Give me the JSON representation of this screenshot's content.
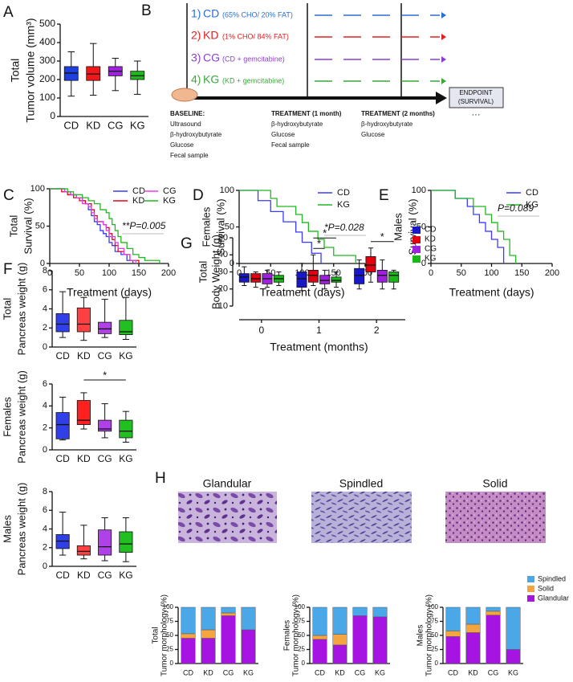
{
  "panels": [
    "A",
    "B",
    "C",
    "D",
    "E",
    "F",
    "G",
    "H"
  ],
  "schematic": {
    "rows": [
      {
        "number": "1)",
        "name": "CD",
        "desc": "(65% CHO/ 20% FAT)",
        "color": "#2a6fd6"
      },
      {
        "number": "2)",
        "name": "KD",
        "desc": "(1% CHO/ 84% FAT)",
        "color": "#e02020"
      },
      {
        "number": "3)",
        "name": "CG",
        "desc": "(CD + gemcitabine)",
        "color": "#8b3fd0"
      },
      {
        "number": "4)",
        "name": "KG",
        "desc": "(KD + gemcitabine)",
        "color": "#3aa83a"
      }
    ],
    "timepoints": [
      {
        "title": "BASELINE:",
        "items": [
          "Ultrasound",
          "β-hydroxybutyrate",
          "Glucose",
          "Fecal sample"
        ]
      },
      {
        "title": "TREATMENT (1 month)",
        "items": [
          "β-hydroxybutyrate",
          "Glucose",
          "Fecal sample"
        ]
      },
      {
        "title": "TREATMENT (2 months)",
        "items": [
          "β-hydroxybutyrate",
          "Glucose"
        ]
      }
    ],
    "endpoint": [
      "ENDPOINT",
      "(SURVIVAL)"
    ],
    "ellipsis": "···"
  },
  "histology": [
    "Glandular",
    "Spindled",
    "Solid"
  ],
  "chart_data": [
    {
      "type": "box",
      "ylabel": [
        "Total",
        "Tumor volume (mm³)"
      ],
      "categories": [
        "CD",
        "KD",
        "CG",
        "KG"
      ],
      "colors": [
        "#1f3fe0",
        "#f01818",
        "#a020e0",
        "#1cb81c"
      ],
      "boxes": [
        {
          "min": 110,
          "q1": 195,
          "median": 235,
          "q3": 270,
          "max": 350
        },
        {
          "min": 115,
          "q1": 195,
          "median": 230,
          "q3": 270,
          "max": 395
        },
        {
          "min": 140,
          "q1": 220,
          "median": 245,
          "q3": 270,
          "max": 315
        },
        {
          "min": 120,
          "q1": 200,
          "median": 220,
          "q3": 245,
          "max": 300
        }
      ],
      "ylim": [
        0,
        500
      ],
      "yticks": [
        0,
        100,
        200,
        300,
        400,
        500
      ]
    },
    {
      "type": "survival",
      "ylabel": [
        "Total",
        "Survival (%)"
      ],
      "xlabel": "Treatment (days)",
      "xlim": [
        0,
        200
      ],
      "xticks": [
        0,
        50,
        100,
        150,
        200
      ],
      "ylim": [
        0,
        100
      ],
      "yticks": [
        0,
        50,
        100
      ],
      "annotation": "**P=0.005",
      "legend": "upper right",
      "series": [
        {
          "name": "CD",
          "color": "#3a3aff",
          "x": [
            0,
            25,
            35,
            45,
            55,
            60,
            65,
            70,
            75,
            80,
            85,
            90,
            95,
            100,
            105,
            110,
            120,
            130,
            140
          ],
          "values": [
            100,
            96,
            92,
            88,
            84,
            80,
            72,
            64,
            56,
            52,
            44,
            40,
            36,
            28,
            24,
            16,
            12,
            4,
            0
          ]
        },
        {
          "name": "KD",
          "color": "#e8001c",
          "x": [
            0,
            20,
            30,
            40,
            50,
            60,
            70,
            75,
            80,
            90,
            95,
            100,
            105,
            110,
            115,
            125,
            135,
            150
          ],
          "values": [
            100,
            96,
            92,
            88,
            84,
            80,
            72,
            64,
            56,
            52,
            48,
            40,
            32,
            24,
            16,
            12,
            4,
            0
          ]
        },
        {
          "name": "CG",
          "color": "#e040e0",
          "x": [
            0,
            25,
            35,
            45,
            55,
            65,
            70,
            75,
            80,
            90,
            95,
            100,
            110,
            115,
            125,
            135,
            145
          ],
          "values": [
            100,
            96,
            92,
            88,
            80,
            76,
            68,
            60,
            56,
            52,
            44,
            36,
            28,
            20,
            12,
            4,
            0
          ]
        },
        {
          "name": "KG",
          "color": "#22b822",
          "x": [
            0,
            30,
            40,
            55,
            65,
            75,
            85,
            95,
            100,
            105,
            110,
            115,
            120,
            130,
            140,
            150,
            160,
            185
          ],
          "values": [
            100,
            96,
            92,
            88,
            84,
            80,
            72,
            68,
            60,
            52,
            44,
            36,
            28,
            20,
            12,
            8,
            4,
            0
          ]
        }
      ]
    },
    {
      "type": "survival",
      "ylabel": [
        "Females",
        "Survival (%)"
      ],
      "xlabel": "Treatment (days)",
      "xlim": [
        0,
        200
      ],
      "xticks": [
        0,
        50,
        100,
        150,
        200
      ],
      "ylim": [
        0,
        100
      ],
      "yticks": [
        0,
        50,
        100
      ],
      "annotation": "*P=0.028",
      "legend": "upper right",
      "series": [
        {
          "name": "CD",
          "color": "#3a3aff",
          "x": [
            0,
            30,
            50,
            70,
            90,
            100,
            115,
            130
          ],
          "values": [
            100,
            86,
            71,
            57,
            43,
            29,
            14,
            0
          ]
        },
        {
          "name": "KG",
          "color": "#22b822",
          "x": [
            0,
            50,
            60,
            90,
            100,
            110,
            125,
            135,
            150,
            185
          ],
          "values": [
            100,
            89,
            78,
            67,
            56,
            44,
            33,
            22,
            11,
            0
          ]
        }
      ]
    },
    {
      "type": "survival",
      "ylabel": [
        "Males",
        "Survival (%)"
      ],
      "xlabel": "Treatment (days)",
      "xlim": [
        0,
        200
      ],
      "xticks": [
        0,
        50,
        100,
        150,
        200
      ],
      "ylim": [
        0,
        100
      ],
      "yticks": [
        0,
        50,
        100
      ],
      "annotation": "P=0.089",
      "legend": "upper right",
      "series": [
        {
          "name": "CD",
          "color": "#3a3aff",
          "x": [
            0,
            40,
            60,
            70,
            80,
            90,
            100,
            110,
            120
          ],
          "values": [
            100,
            89,
            78,
            67,
            56,
            44,
            33,
            22,
            0
          ]
        },
        {
          "name": "KG",
          "color": "#22b822",
          "x": [
            0,
            40,
            70,
            90,
            100,
            110,
            120,
            130,
            140
          ],
          "values": [
            100,
            89,
            78,
            67,
            56,
            44,
            33,
            11,
            0
          ]
        }
      ]
    },
    {
      "type": "box",
      "ylabel": [
        "Total",
        "Pancreas weight (g)"
      ],
      "categories": [
        "CD",
        "KD",
        "CG",
        "KG"
      ],
      "colors": [
        "#3040e8",
        "#ff4040",
        "#b040e8",
        "#20c020"
      ],
      "boxes": [
        {
          "min": 1.0,
          "q1": 1.6,
          "median": 2.4,
          "q3": 3.5,
          "max": 5.8
        },
        {
          "min": 0.7,
          "q1": 1.6,
          "median": 2.4,
          "q3": 4.1,
          "max": 5.2
        },
        {
          "min": 1.0,
          "q1": 1.4,
          "median": 1.9,
          "q3": 2.6,
          "max": 5.0
        },
        {
          "min": 0.8,
          "q1": 1.3,
          "median": 1.6,
          "q3": 2.8,
          "max": 5.2
        }
      ],
      "ylim": [
        0,
        8
      ],
      "yticks": [
        0,
        2,
        4,
        6,
        8
      ]
    },
    {
      "type": "box",
      "ylabel": [
        "Females",
        "Pancreas weight (g)"
      ],
      "categories": [
        "CD",
        "KD",
        "CG",
        "KG"
      ],
      "colors": [
        "#3040e8",
        "#ff2020",
        "#b040e8",
        "#20c020"
      ],
      "boxes": [
        {
          "min": 0.9,
          "q1": 1.0,
          "median": 2.3,
          "q3": 3.4,
          "max": 4.8
        },
        {
          "min": 1.9,
          "q1": 2.3,
          "median": 2.7,
          "q3": 4.5,
          "max": 5.2
        },
        {
          "min": 1.1,
          "q1": 1.7,
          "median": 1.9,
          "q3": 2.7,
          "max": 4.2
        },
        {
          "min": 0.7,
          "q1": 1.1,
          "median": 1.7,
          "q3": 2.7,
          "max": 3.5
        }
      ],
      "ylim": [
        0,
        6
      ],
      "yticks": [
        0,
        2,
        4,
        6
      ],
      "annotations": [
        {
          "text": "*",
          "between": [
            "KD",
            "KG"
          ]
        }
      ]
    },
    {
      "type": "box",
      "ylabel": [
        "Males",
        "Pancreas weight (g)"
      ],
      "categories": [
        "CD",
        "KD",
        "CG",
        "KG"
      ],
      "colors": [
        "#3040e8",
        "#ff4040",
        "#b040e8",
        "#20c020"
      ],
      "boxes": [
        {
          "min": 1.2,
          "q1": 1.9,
          "median": 2.7,
          "q3": 3.4,
          "max": 5.8
        },
        {
          "min": 0.8,
          "q1": 1.2,
          "median": 1.6,
          "q3": 2.2,
          "max": 4.4
        },
        {
          "min": 0.6,
          "q1": 1.2,
          "median": 2.1,
          "q3": 3.9,
          "max": 5.2
        },
        {
          "min": 0.5,
          "q1": 1.5,
          "median": 2.4,
          "q3": 3.7,
          "max": 5.2
        }
      ],
      "ylim": [
        0,
        8
      ],
      "yticks": [
        0,
        2,
        4,
        6,
        8
      ]
    },
    {
      "type": "grouped_box",
      "ylabel": [
        "Total",
        "Body Weight (g)"
      ],
      "xlabel": "Treatment (months)",
      "categories": [
        "0",
        "1",
        "2"
      ],
      "ylim": [
        10,
        50
      ],
      "yticks": [
        10,
        20,
        30,
        40,
        50
      ],
      "legend": "right",
      "series": [
        {
          "name": "CD",
          "color": "#1818c8",
          "boxes": [
            {
              "min": 22,
              "q1": 24,
              "median": 27,
              "q3": 29,
              "max": 33
            },
            {
              "min": 19,
              "q1": 21,
              "median": 26,
              "q3": 30,
              "max": 35
            },
            {
              "min": 20,
              "q1": 23,
              "median": 28,
              "q3": 32,
              "max": 37
            }
          ]
        },
        {
          "name": "KD",
          "color": "#e00010",
          "boxes": [
            {
              "min": 21,
              "q1": 24,
              "median": 26,
              "q3": 29,
              "max": 30
            },
            {
              "min": 22,
              "q1": 24,
              "median": 28,
              "q3": 31,
              "max": 40
            },
            {
              "min": 24,
              "q1": 30,
              "median": 34,
              "q3": 39,
              "max": 44
            }
          ]
        },
        {
          "name": "CG",
          "color": "#a020e0",
          "boxes": [
            {
              "min": 21,
              "q1": 23,
              "median": 26,
              "q3": 29,
              "max": 31
            },
            {
              "min": 20,
              "q1": 23,
              "median": 25,
              "q3": 28,
              "max": 31
            },
            {
              "min": 20,
              "q1": 24,
              "median": 28,
              "q3": 31,
              "max": 37
            }
          ]
        },
        {
          "name": "KG",
          "color": "#18b818",
          "boxes": [
            {
              "min": 22,
              "q1": 24,
              "median": 26,
              "q3": 28,
              "max": 30
            },
            {
              "min": 21,
              "q1": 24,
              "median": 25,
              "q3": 27,
              "max": 30
            },
            {
              "min": 20,
              "q1": 24,
              "median": 28,
              "q3": 30,
              "max": 31
            }
          ]
        }
      ],
      "annotations": [
        {
          "text": "*",
          "at": "1",
          "between": [
            "KD",
            "CG"
          ]
        },
        {
          "text": "*",
          "at": "1",
          "between": [
            "KD",
            "KG"
          ]
        },
        {
          "text": "*",
          "at": "2",
          "between": [
            "KD",
            "KG"
          ]
        }
      ]
    },
    {
      "type": "stacked_bar",
      "ylabel": [
        "Total",
        "Tumor morphology (%)"
      ],
      "categories": [
        "CD",
        "KD",
        "CG",
        "KG"
      ],
      "ylim": [
        0,
        100
      ],
      "yticks": [
        0,
        25,
        50,
        75,
        100
      ],
      "series": [
        {
          "name": "Glandular",
          "color": "#a514e0",
          "values": [
            45,
            45,
            85,
            60
          ]
        },
        {
          "name": "Solid",
          "color": "#f5a540",
          "values": [
            8,
            15,
            5,
            0
          ]
        },
        {
          "name": "Spindled",
          "color": "#4aa8e8",
          "values": [
            47,
            40,
            10,
            40
          ]
        }
      ]
    },
    {
      "type": "stacked_bar",
      "ylabel": [
        "Females",
        "Tumor morphology (%)"
      ],
      "categories": [
        "CD",
        "KD",
        "CG",
        "KG"
      ],
      "ylim": [
        0,
        100
      ],
      "yticks": [
        0,
        25,
        50,
        75,
        100
      ],
      "series": [
        {
          "name": "Glandular",
          "color": "#a514e0",
          "values": [
            43,
            33,
            85,
            83
          ]
        },
        {
          "name": "Solid",
          "color": "#f5a540",
          "values": [
            7,
            19,
            0,
            0
          ]
        },
        {
          "name": "Spindled",
          "color": "#4aa8e8",
          "values": [
            50,
            48,
            15,
            17
          ]
        }
      ]
    },
    {
      "type": "stacked_bar",
      "ylabel": [
        "Males",
        "Tumor morphology (%)"
      ],
      "categories": [
        "CD",
        "KD",
        "CG",
        "KG"
      ],
      "ylim": [
        0,
        100
      ],
      "yticks": [
        0,
        25,
        50,
        75,
        100
      ],
      "legend": "right",
      "series": [
        {
          "name": "Glandular",
          "color": "#a514e0",
          "values": [
            48,
            55,
            86,
            25
          ]
        },
        {
          "name": "Solid",
          "color": "#f5a540",
          "values": [
            10,
            15,
            7,
            0
          ]
        },
        {
          "name": "Spindled",
          "color": "#4aa8e8",
          "values": [
            42,
            30,
            7,
            75
          ]
        }
      ]
    }
  ]
}
